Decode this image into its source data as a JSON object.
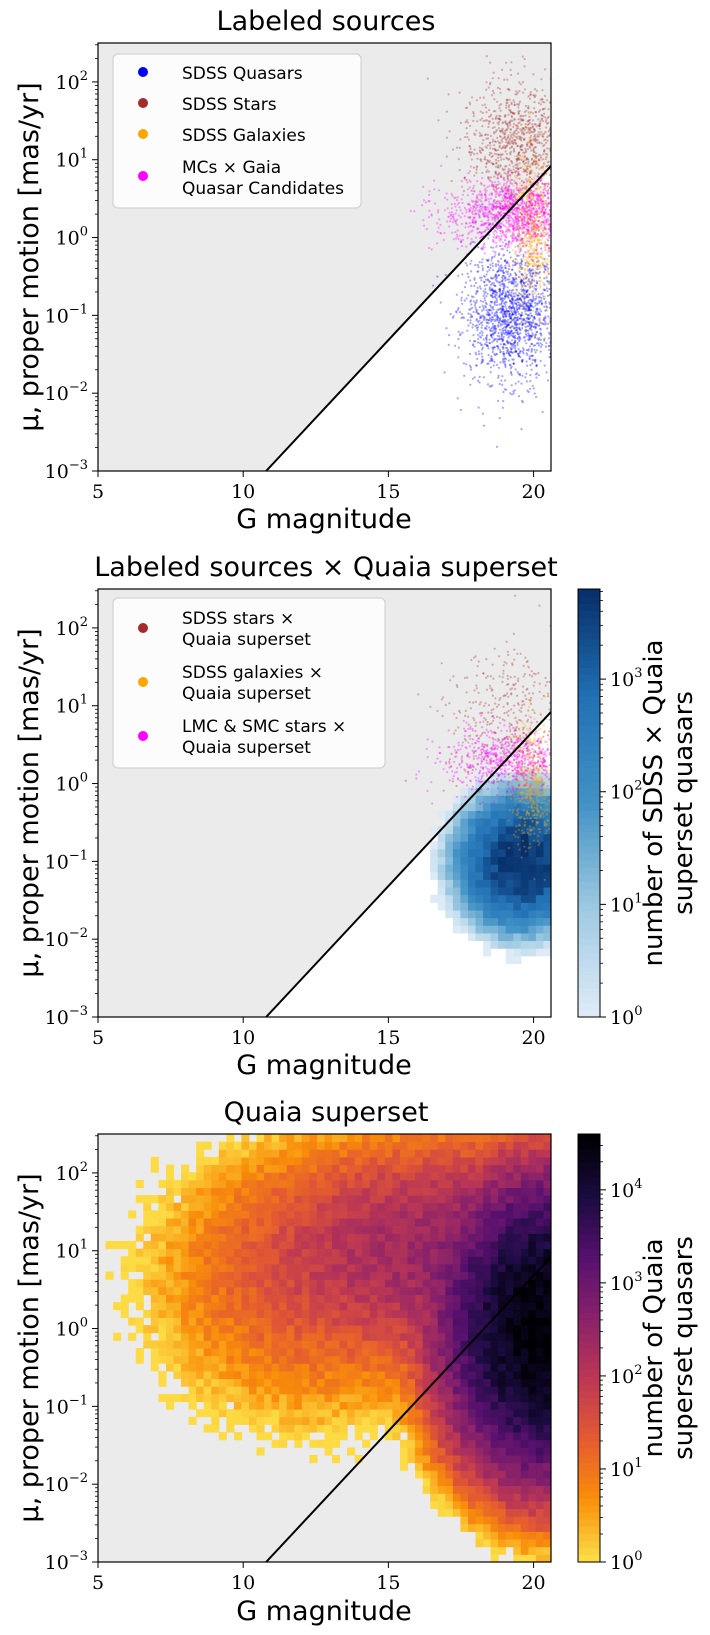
{
  "chart_data": [
    {
      "type": "scatter",
      "title": "Labeled sources",
      "xlabel": "G magnitude",
      "ylabel": "μ, proper motion [mas/yr]",
      "xlim": [
        5,
        20.6
      ],
      "ylim_log10": [
        -3,
        2.5
      ],
      "yscale": "log",
      "xticks": [
        "5",
        "10",
        "15",
        "20"
      ],
      "yticks": [
        "10^-3",
        "10^-2",
        "10^-1",
        "10^0",
        "10^1",
        "10^2"
      ],
      "background": "#ebebeb",
      "legend_position": "upper-left",
      "legend": [
        {
          "label": "SDSS Quasars",
          "color": "#0000ff"
        },
        {
          "label": "SDSS Stars",
          "color": "#a52a2a"
        },
        {
          "label": "SDSS Galaxies",
          "color": "#ffa500"
        },
        {
          "label": "MCs × Gaia",
          "label2": "Quasar Candidates",
          "color": "#ff00ff"
        }
      ],
      "cut_line": {
        "x": [
          10.79,
          20.6
        ],
        "log10_mu": [
          -3,
          0.92
        ],
        "color": "#000000"
      },
      "series": [
        {
          "name": "SDSS Quasars",
          "color": "#0000ff",
          "g_center": 19.2,
          "g_sigma": 0.8,
          "log10_mu_center": -1.0,
          "log10_mu_sigma": 0.42,
          "g_min": 16.5
        },
        {
          "name": "SDSS Stars",
          "color": "#a52a2a",
          "g_center": 19.4,
          "g_sigma": 0.9,
          "log10_mu_center": 1.2,
          "log10_mu_sigma": 0.4,
          "g_min": 13.5
        },
        {
          "name": "SDSS Galaxies",
          "color": "#ffa500",
          "g_center": 20.0,
          "g_sigma": 0.35,
          "log10_mu_center": 0.1,
          "log10_mu_sigma": 0.45,
          "g_min": 17.0
        },
        {
          "name": "MCs × Gaia Quasar Candidates",
          "color": "#ff00ff",
          "g_center": 19.3,
          "g_sigma": 1.2,
          "log10_mu_center": 0.3,
          "log10_mu_sigma": 0.22,
          "g_min": 12.0
        }
      ]
    },
    {
      "type": "scatter",
      "title": "Labeled sources × Quaia superset",
      "xlabel": "G magnitude",
      "ylabel": "μ, proper motion [mas/yr]",
      "xlim": [
        5,
        20.6
      ],
      "ylim_log10": [
        -3,
        2.5
      ],
      "yscale": "log",
      "xticks": [
        "5",
        "10",
        "15",
        "20"
      ],
      "yticks": [
        "10^-3",
        "10^-2",
        "10^-1",
        "10^0",
        "10^1",
        "10^2"
      ],
      "background": "#ebebeb",
      "legend_position": "upper-left",
      "legend": [
        {
          "label": "SDSS stars ×",
          "label2": "Quaia superset",
          "color": "#a52a2a"
        },
        {
          "label": "SDSS galaxies ×",
          "label2": "Quaia superset",
          "color": "#ffa500"
        },
        {
          "label": "LMC & SMC stars ×",
          "label2": "Quaia superset",
          "color": "#ff00ff"
        }
      ],
      "cut_line": {
        "x": [
          10.79,
          20.6
        ],
        "log10_mu": [
          -3,
          0.92
        ],
        "color": "#000000"
      },
      "heatmap": {
        "g_center": 19.6,
        "g_sigma": 1.4,
        "log10_mu_center": -1.0,
        "log10_mu_sigma": 0.55,
        "g_min": 14.5
      },
      "colorbar": {
        "label_line1": "number of SDSS × Quaia",
        "label_line2": "superset quasars",
        "scale": "log",
        "ticks": [
          "10^0",
          "10^1",
          "10^2",
          "10^3"
        ],
        "range_log10": [
          0,
          3.8
        ],
        "colors": [
          "#deebf7",
          "#9ecae1",
          "#4292c6",
          "#2171b5",
          "#08306b"
        ]
      },
      "series": [
        {
          "name": "SDSS stars × Quaia superset",
          "color": "#a52a2a",
          "g_center": 19.0,
          "g_sigma": 1.0,
          "log10_mu_center": 0.8,
          "log10_mu_sigma": 0.45,
          "g_min": 15.0
        },
        {
          "name": "SDSS galaxies × Quaia superset",
          "color": "#ffa500",
          "g_center": 20.0,
          "g_sigma": 0.35,
          "log10_mu_center": 0.0,
          "log10_mu_sigma": 0.4,
          "g_min": 18.0
        },
        {
          "name": "LMC & SMC stars × Quaia superset",
          "color": "#ff00ff",
          "g_center": 19.0,
          "g_sigma": 1.1,
          "log10_mu_center": 0.3,
          "log10_mu_sigma": 0.2,
          "g_min": 14.0
        }
      ]
    },
    {
      "type": "heatmap",
      "title": "Quaia superset",
      "xlabel": "G magnitude",
      "ylabel": "μ, proper motion [mas/yr]",
      "xlim": [
        5,
        20.6
      ],
      "ylim_log10": [
        -3,
        2.5
      ],
      "yscale": "log",
      "xticks": [
        "5",
        "10",
        "15",
        "20"
      ],
      "yticks": [
        "10^-3",
        "10^-2",
        "10^-1",
        "10^0",
        "10^1",
        "10^2"
      ],
      "background": "#ebebeb",
      "cut_line": {
        "x": [
          10.79,
          20.6
        ],
        "log10_mu": [
          -3,
          0.92
        ],
        "color": "#000000"
      },
      "heatmap_components": [
        {
          "weight": 4.6,
          "g_center": 20.4,
          "g_sigma": 1.2,
          "log10_mu_center": 0.0,
          "log10_mu_sigma": 0.65
        },
        {
          "weight": 2.4,
          "g_center": 17.0,
          "g_sigma": 2.6,
          "log10_mu_center": 1.0,
          "log10_mu_sigma": 0.55
        },
        {
          "weight": 1.3,
          "g_center": 12.5,
          "g_sigma": 2.5,
          "log10_mu_center": 0.6,
          "log10_mu_sigma": 0.8
        }
      ],
      "colorbar": {
        "label_line1": "number of Quaia",
        "label_line2": "superset quasars",
        "scale": "log",
        "ticks": [
          "10^0",
          "10^1",
          "10^2",
          "10^3",
          "10^4"
        ],
        "range_log10": [
          0,
          4.6
        ],
        "colors": [
          "#fcdb45",
          "#f98e09",
          "#e45a31",
          "#bc3754",
          "#8a226a",
          "#57106e",
          "#1b0c41",
          "#000004"
        ]
      }
    }
  ]
}
